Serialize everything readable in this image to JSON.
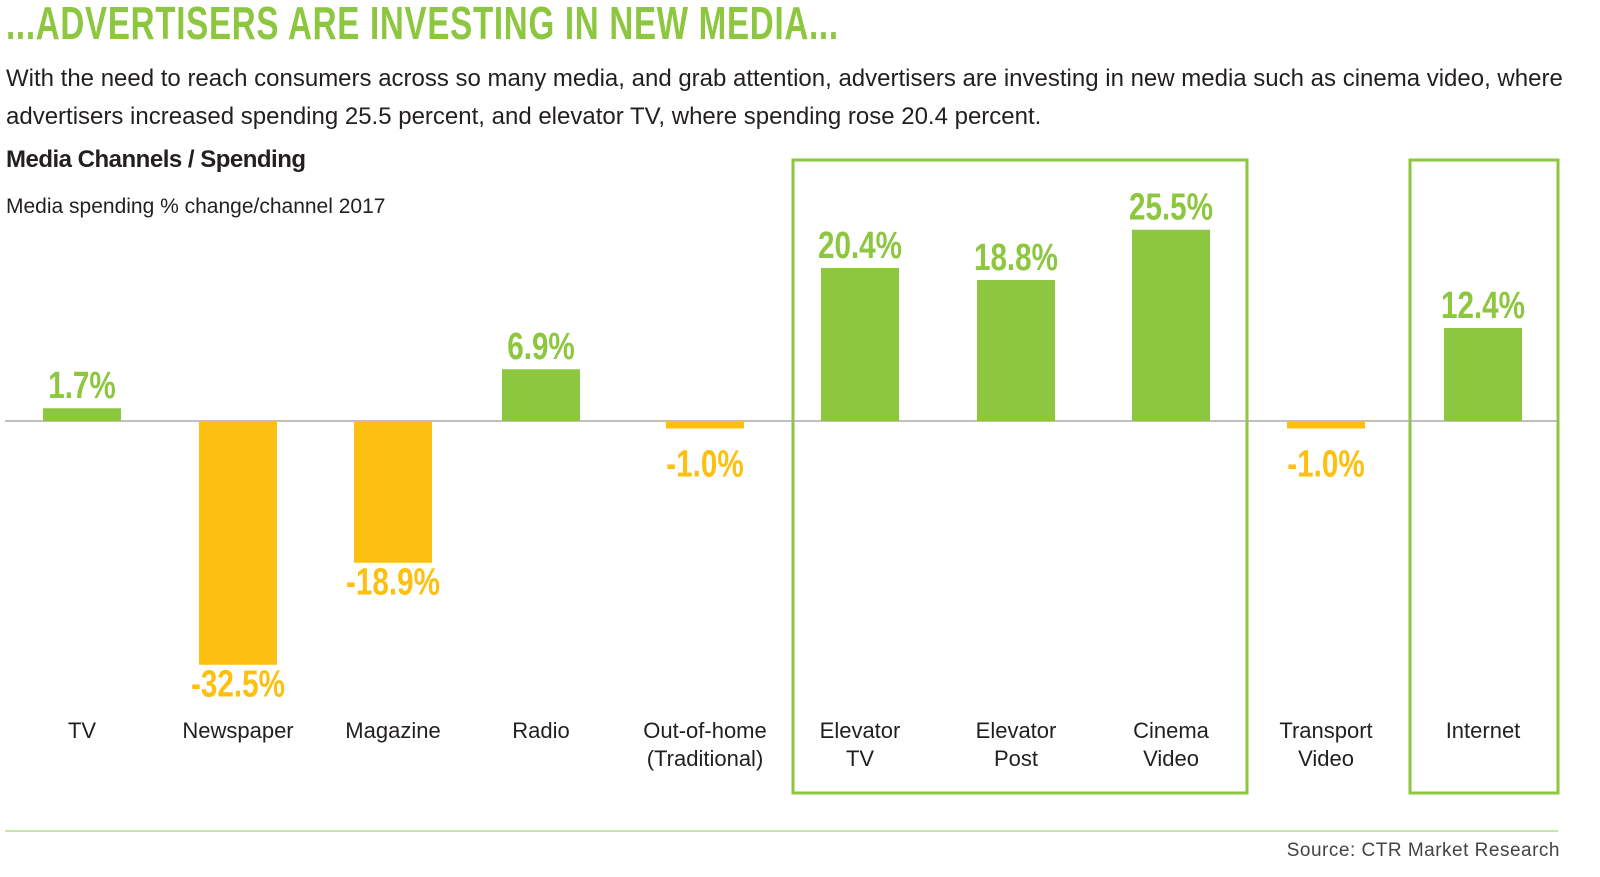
{
  "header": {
    "title": "...ADVERTISERS ARE INVESTING IN NEW MEDIA...",
    "subtitle": "With the need to reach consumers across so many media, and grab attention, advertisers are investing in new media such as cinema video, where advertisers increased spending 25.5 percent, and elevator TV, where spending rose 20.4 percent."
  },
  "footer": {
    "source": "Source:  CTR Market Research"
  },
  "colors": {
    "positive": "#8dc63f",
    "negative": "#fdc010",
    "highlight_box": "#8dc63f",
    "axis": "#aaaaaa"
  },
  "chart_data": {
    "type": "bar",
    "title": "Media Channels / Spending",
    "subtitle": "Media spending % change/channel 2017",
    "categories": [
      [
        "TV"
      ],
      [
        "Newspaper"
      ],
      [
        "Magazine"
      ],
      [
        "Radio"
      ],
      [
        "Out-of-home",
        "(Traditional)"
      ],
      [
        "Elevator",
        "TV"
      ],
      [
        "Elevator",
        "Post"
      ],
      [
        "Cinema",
        "Video"
      ],
      [
        "Transport",
        "Video"
      ],
      [
        "Internet"
      ]
    ],
    "values": [
      1.7,
      -32.5,
      -18.9,
      6.9,
      -1.0,
      20.4,
      18.8,
      25.5,
      -1.0,
      12.4
    ],
    "data_labels": [
      "1.7%",
      "-32.5%",
      "-18.9%",
      "6.9%",
      "-1.0%",
      "20.4%",
      "18.8%",
      "25.5%",
      "-1.0%",
      "12.4%"
    ],
    "highlighted_groups": [
      [
        "Elevator TV",
        "Elevator Post",
        "Cinema Video"
      ],
      [
        "Internet"
      ]
    ],
    "grid": false,
    "legend": "none"
  }
}
